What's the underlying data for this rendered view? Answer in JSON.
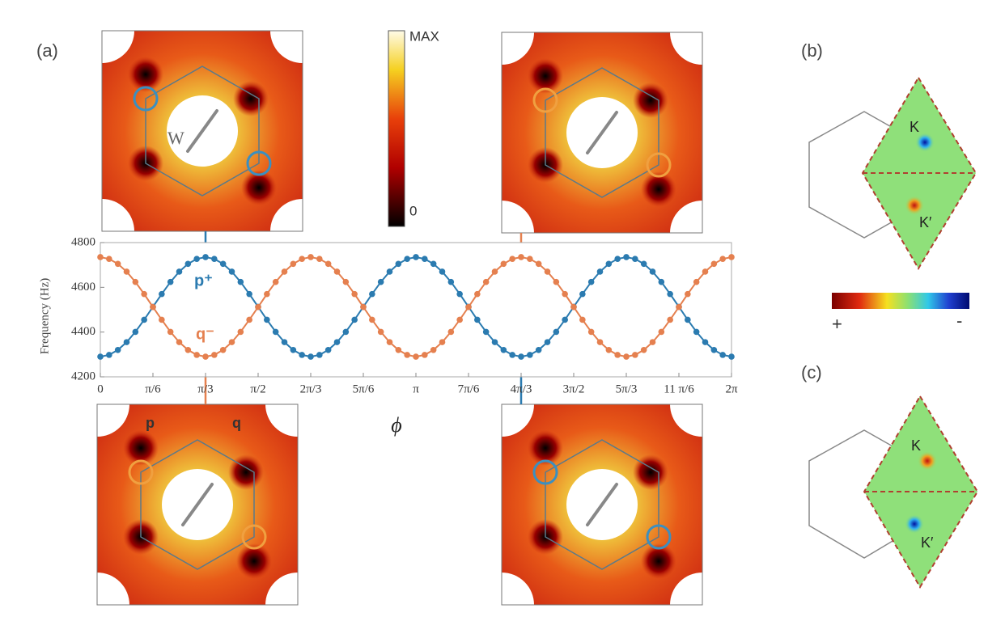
{
  "chart_data": {
    "type": "line",
    "x_label": "ϕ",
    "y_label": "Frequency (Hz)",
    "xlim": [
      0,
      6.2832
    ],
    "ylim": [
      4200,
      4800
    ],
    "xticks": [
      0,
      {
        "value": 0.5236,
        "label": "π/6"
      },
      {
        "value": 1.0472,
        "label": "π/3"
      },
      {
        "value": 1.5708,
        "label": "π/2"
      },
      {
        "value": 2.0944,
        "label": "2π/3"
      },
      {
        "value": 2.618,
        "label": "5π/6"
      },
      {
        "value": 3.1416,
        "label": "π"
      },
      {
        "value": 3.6652,
        "label": "7π/6"
      },
      {
        "value": 4.1888,
        "label": "4π/3"
      },
      {
        "value": 4.7124,
        "label": "3π/2"
      },
      {
        "value": 5.236,
        "label": "5π/3"
      },
      {
        "value": 5.7596,
        "label": "11 π/6"
      },
      {
        "value": 6.2832,
        "label": "2π"
      }
    ],
    "yticks": [
      4200,
      4400,
      4600,
      4800
    ],
    "grid": false,
    "x": [
      0,
      0.0873,
      0.1745,
      0.2618,
      0.3491,
      0.4363,
      0.5236,
      0.6109,
      0.6981,
      0.7854,
      0.8727,
      0.9599,
      1.0472,
      1.1345,
      1.2217,
      1.309,
      1.3963,
      1.4835,
      1.5708,
      1.6581,
      1.7453,
      1.8326,
      1.9199,
      2.0071,
      2.0944,
      2.1817,
      2.2689,
      2.3562,
      2.4435,
      2.5307,
      2.618,
      2.7053,
      2.7925,
      2.8798,
      2.9671,
      3.0543,
      3.1416,
      3.2289,
      3.3161,
      3.4034,
      3.4907,
      3.5779,
      3.6652,
      3.7525,
      3.8397,
      3.927,
      4.0143,
      4.1015,
      4.1888,
      4.2761,
      4.3633,
      4.4506,
      4.5379,
      4.6251,
      4.7124,
      4.7997,
      4.8869,
      4.9742,
      5.0615,
      5.1487,
      5.236,
      5.3233,
      5.4105,
      5.4978,
      5.5851,
      5.6723,
      5.7596,
      5.8469,
      5.9341,
      6.0214,
      6.1087,
      6.1959,
      6.2832
    ],
    "series": [
      {
        "name": "p⁺",
        "color": "#2b7bb0",
        "values": [
          4290,
          4298,
          4320,
          4355,
          4401,
          4455,
          4513,
          4570,
          4624,
          4670,
          4705,
          4727,
          4735,
          4727,
          4705,
          4670,
          4624,
          4570,
          4513,
          4455,
          4401,
          4355,
          4320,
          4298,
          4290,
          4298,
          4320,
          4355,
          4401,
          4455,
          4513,
          4570,
          4624,
          4670,
          4705,
          4727,
          4735,
          4727,
          4705,
          4670,
          4624,
          4570,
          4513,
          4455,
          4401,
          4355,
          4320,
          4298,
          4290,
          4298,
          4320,
          4355,
          4401,
          4455,
          4513,
          4570,
          4624,
          4670,
          4705,
          4727,
          4735,
          4727,
          4705,
          4670,
          4624,
          4570,
          4513,
          4455,
          4401,
          4355,
          4320,
          4298,
          4290
        ]
      },
      {
        "name": "q⁻",
        "color": "#e5804f",
        "values": [
          4735,
          4727,
          4705,
          4670,
          4624,
          4570,
          4512,
          4455,
          4401,
          4355,
          4320,
          4298,
          4290,
          4298,
          4320,
          4355,
          4401,
          4455,
          4512,
          4570,
          4624,
          4670,
          4705,
          4727,
          4735,
          4727,
          4705,
          4670,
          4624,
          4570,
          4512,
          4455,
          4401,
          4355,
          4320,
          4298,
          4290,
          4298,
          4320,
          4355,
          4401,
          4455,
          4512,
          4570,
          4624,
          4670,
          4705,
          4727,
          4735,
          4727,
          4705,
          4670,
          4624,
          4570,
          4512,
          4455,
          4401,
          4355,
          4320,
          4298,
          4290,
          4298,
          4320,
          4355,
          4401,
          4455,
          4512,
          4570,
          4624,
          4670,
          4705,
          4727,
          4735
        ]
      }
    ]
  },
  "figure": {
    "panel_a": "(a)",
    "panel_b": "(b)",
    "panel_c": "(c)",
    "colorbar_max": "MAX",
    "colorbar_min": "0",
    "colorbar_plus": "+",
    "colorbar_minus": "-",
    "inset_w": "W",
    "inset_p": "p",
    "inset_q": "q",
    "b_k": "K",
    "b_k_prime": "K′",
    "c_k": "K",
    "c_k_prime": "K′"
  }
}
